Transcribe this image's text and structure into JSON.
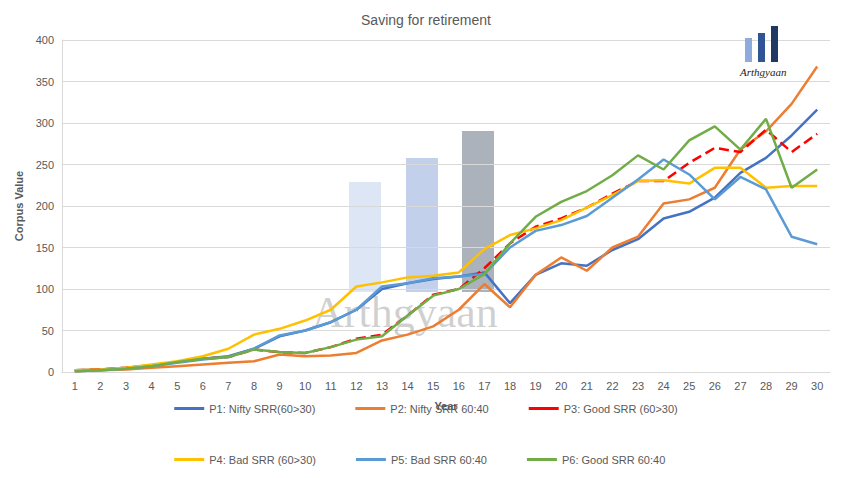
{
  "chart_data": {
    "type": "line",
    "title": "Saving for retirement",
    "x_label": "Year",
    "y_label": "Corpus Value",
    "annotations": [
      "Arthgyaan",
      "Arthgyaan"
    ],
    "categories": [
      1,
      2,
      3,
      4,
      5,
      6,
      7,
      8,
      9,
      10,
      11,
      12,
      13,
      14,
      15,
      16,
      17,
      18,
      19,
      20,
      21,
      22,
      23,
      24,
      25,
      26,
      27,
      28,
      29,
      30
    ],
    "series": [
      {
        "name": "P1: Nifty SRR(60>30)",
        "color": "#4472c4",
        "line_style": "solid",
        "values": [
          2,
          3,
          5,
          8,
          12,
          16,
          19,
          28,
          43,
          50,
          60,
          75,
          100,
          107,
          112,
          115,
          120,
          83,
          117,
          131,
          128,
          147,
          160,
          185,
          193,
          210,
          240,
          258,
          285,
          316
        ]
      },
      {
        "name": "P2: Nifty SRR 60:40",
        "color": "#ed7d31",
        "line_style": "solid",
        "values": [
          1,
          2,
          3,
          5,
          7,
          9,
          11,
          13,
          21,
          19,
          20,
          23,
          38,
          45,
          55,
          75,
          106,
          78,
          117,
          138,
          122,
          150,
          163,
          203,
          208,
          222,
          268,
          290,
          323,
          368
        ]
      },
      {
        "name": "P3: Good SRR (60>30)",
        "color": "#ff0000",
        "line_style": "dashed",
        "values": [
          2,
          3,
          5,
          8,
          12,
          16,
          18,
          27,
          24,
          23,
          30,
          40,
          45,
          68,
          93,
          100,
          125,
          155,
          175,
          185,
          198,
          215,
          230,
          230,
          252,
          270,
          265,
          292,
          265,
          287
        ]
      },
      {
        "name": "P4: Bad SRR (60>30)",
        "color": "#ffc000",
        "line_style": "solid",
        "values": [
          2,
          3,
          5,
          9,
          13,
          19,
          28,
          45,
          52,
          62,
          75,
          103,
          108,
          114,
          116,
          120,
          148,
          165,
          173,
          183,
          198,
          213,
          230,
          231,
          227,
          246,
          246,
          222,
          224,
          224
        ]
      },
      {
        "name": "P5: Bad SRR 60:40",
        "color": "#5b9bd5",
        "line_style": "solid",
        "values": [
          1,
          2,
          4,
          7,
          11,
          15,
          18,
          28,
          44,
          50,
          60,
          75,
          103,
          107,
          113,
          115,
          118,
          150,
          170,
          177,
          188,
          210,
          232,
          256,
          238,
          208,
          235,
          220,
          163,
          154
        ]
      },
      {
        "name": "P6: Good SRR 60:40",
        "color": "#70ad47",
        "line_style": "solid",
        "values": [
          1,
          2,
          4,
          7,
          12,
          16,
          18,
          27,
          24,
          23,
          30,
          39,
          43,
          68,
          92,
          100,
          118,
          155,
          187,
          205,
          218,
          237,
          261,
          244,
          279,
          296,
          268,
          305,
          222,
          244
        ]
      }
    ],
    "ylim": [
      0,
      400
    ],
    "yticks": [
      0,
      50,
      100,
      150,
      200,
      250,
      300,
      350,
      400
    ],
    "grid": true,
    "legend": "bottom",
    "marker": "none"
  }
}
